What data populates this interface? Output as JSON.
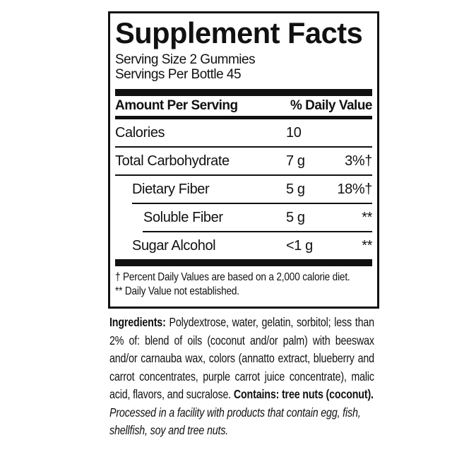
{
  "panel": {
    "title": "Supplement Facts",
    "serving_size": "Serving Size 2 Gummies",
    "servings_per_bottle": "Servings Per Bottle 45",
    "columns": {
      "amount": "Amount Per Serving",
      "daily_value": "% Daily Value"
    },
    "rows": [
      {
        "name": "Calories",
        "amount": "10",
        "daily_value": ""
      },
      {
        "name": "Total Carbohydrate",
        "amount": "7 g",
        "daily_value": "3%†"
      },
      {
        "name": "Dietary Fiber",
        "amount": "5 g",
        "daily_value": "18%†"
      },
      {
        "name": "Soluble Fiber",
        "amount": "5 g",
        "daily_value": "**"
      },
      {
        "name": "Sugar Alcohol",
        "amount": "<1 g",
        "daily_value": "**"
      }
    ],
    "footnotes": {
      "daily_value": "† Percent Daily Values are based on a 2,000 calorie diet.",
      "not_established": "** Daily Value not established."
    }
  },
  "ingredients": {
    "label": "Ingredients:",
    "list": "Polydextrose, water, gelatin, sorbitol; less than 2% of: blend of oils (coconut and/or palm) with beeswax and/or carnauba wax, colors (annatto extract, blueberry and carrot concentrates, purple carrot juice concentrate), malic acid, flavors, and sucralose.",
    "contains": "Contains: tree nuts (coconut).",
    "allergen_notice": "Processed in a facility with products that contain egg, fish, shellfish, soy and tree nuts."
  },
  "colors": {
    "ink": "#111111",
    "background": "#ffffff"
  }
}
